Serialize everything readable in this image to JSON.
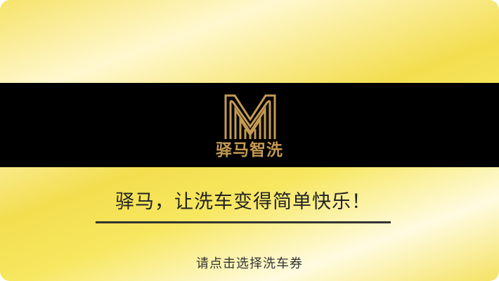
{
  "brand": {
    "name": "驿马智洗",
    "logo_icon": "stylized-m-logo-icon",
    "logo_color": "#c49a52",
    "band_color": "#000000"
  },
  "slogan": {
    "text": "驿马，让洗车变得简单快乐！"
  },
  "prompt": {
    "text": "请点击选择洗车券"
  },
  "colors": {
    "background_gold": "#f3de4f",
    "background_light": "#fff8cf",
    "text_dark": "#222222"
  }
}
